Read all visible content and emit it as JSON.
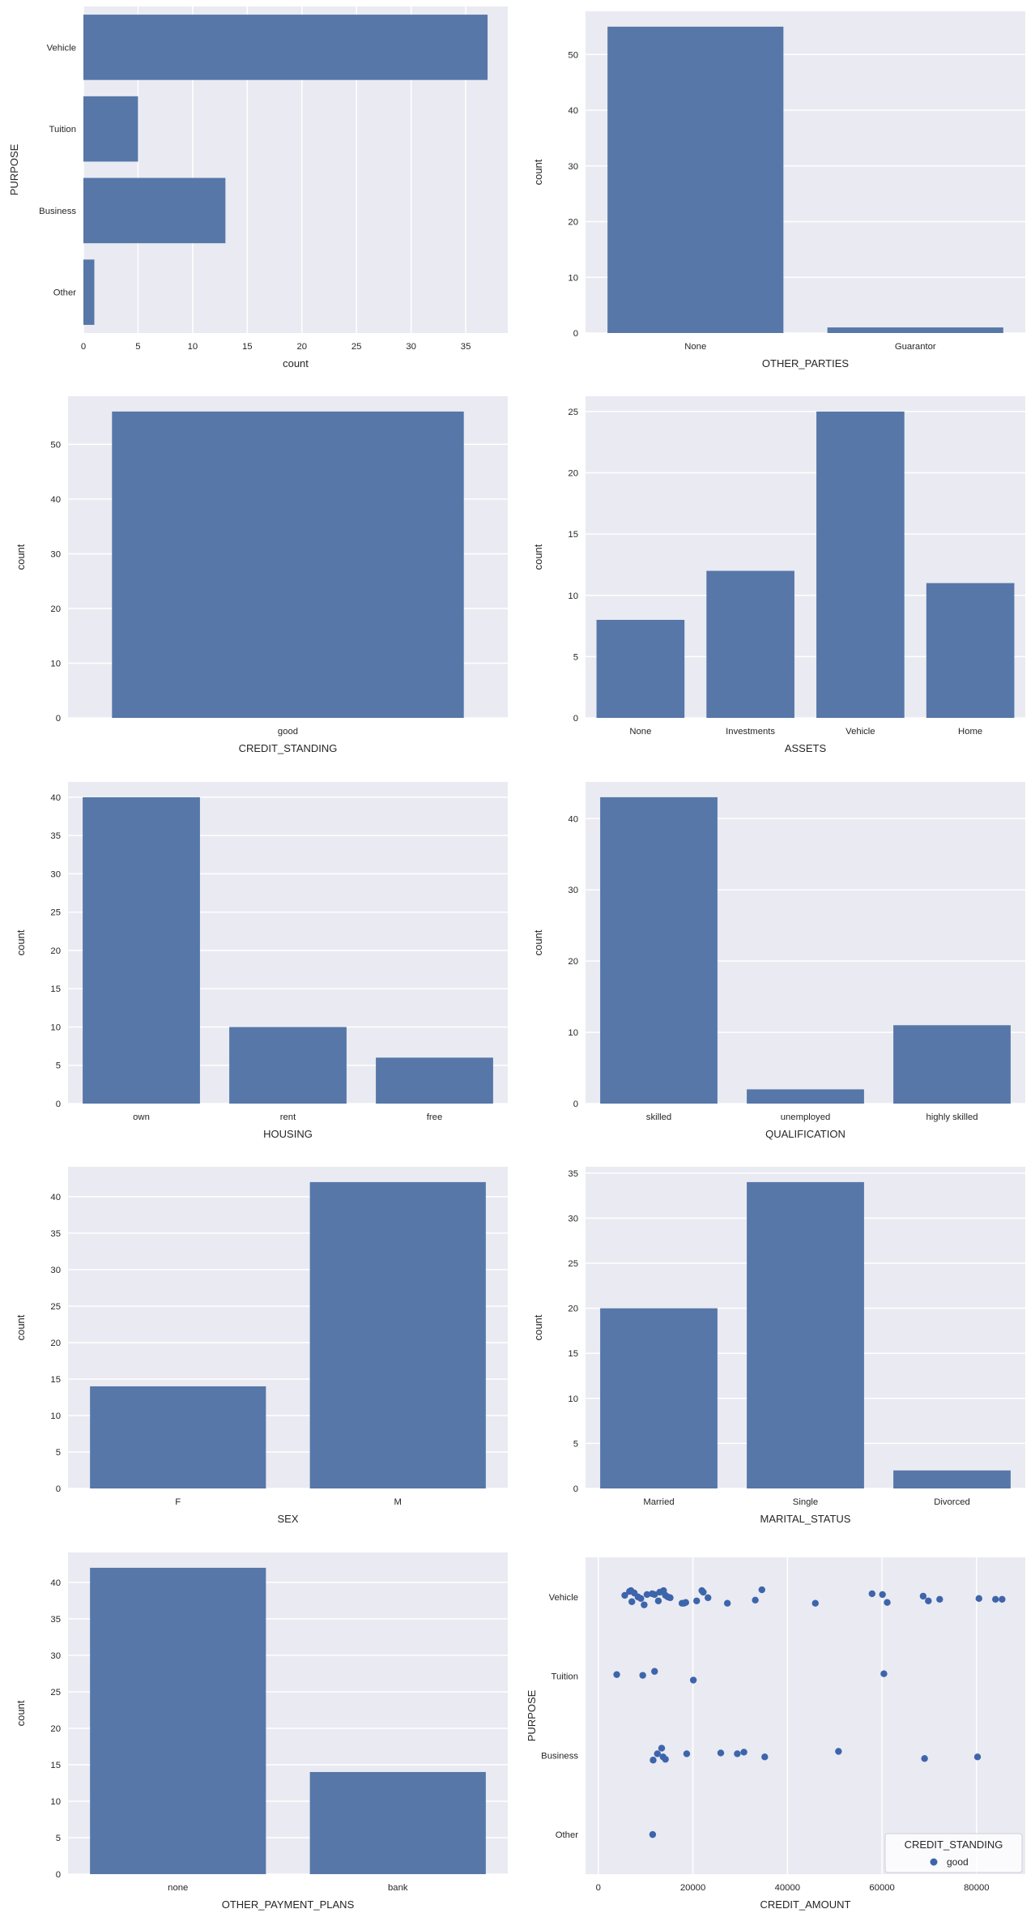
{
  "figure": {
    "background": "#ffffff",
    "axes_background": "#eaeaf2",
    "grid_color": "#ffffff",
    "bar_color": "#5677a8",
    "point_color": "#3d65ab",
    "text_color": "#262626",
    "legend_border": "#cfcfd8",
    "legend_background": "rgba(255,255,255,0.8)"
  },
  "chart_data": [
    {
      "type": "bar",
      "orientation": "horizontal",
      "title": "",
      "xlabel": "count",
      "ylabel": "PURPOSE",
      "categories": [
        "Vehicle",
        "Tuition",
        "Business",
        "Other"
      ],
      "values": [
        37,
        5,
        13,
        1
      ],
      "value_ticks": [
        0,
        5,
        10,
        15,
        20,
        25,
        30,
        35
      ],
      "value_max": 38.85,
      "grid": true
    },
    {
      "type": "bar",
      "orientation": "vertical",
      "title": "",
      "xlabel": "OTHER_PARTIES",
      "ylabel": "count",
      "categories": [
        "None",
        "Guarantor"
      ],
      "values": [
        55,
        1
      ],
      "value_ticks": [
        0,
        10,
        20,
        30,
        40,
        50
      ],
      "value_max": 57.75,
      "grid": true
    },
    {
      "type": "bar",
      "orientation": "vertical",
      "title": "",
      "xlabel": "CREDIT_STANDING",
      "ylabel": "count",
      "categories": [
        "good"
      ],
      "values": [
        56
      ],
      "value_ticks": [
        0,
        10,
        20,
        30,
        40,
        50
      ],
      "value_max": 58.8,
      "grid": true
    },
    {
      "type": "bar",
      "orientation": "vertical",
      "title": "",
      "xlabel": "ASSETS",
      "ylabel": "count",
      "categories": [
        "None",
        "Investments",
        "Vehicle",
        "Home"
      ],
      "values": [
        8,
        12,
        25,
        11
      ],
      "value_ticks": [
        0,
        5,
        10,
        15,
        20,
        25
      ],
      "value_max": 26.25,
      "grid": true
    },
    {
      "type": "bar",
      "orientation": "vertical",
      "title": "",
      "xlabel": "HOUSING",
      "ylabel": "count",
      "categories": [
        "own",
        "rent",
        "free"
      ],
      "values": [
        40,
        10,
        6
      ],
      "value_ticks": [
        0,
        5,
        10,
        15,
        20,
        25,
        30,
        35,
        40
      ],
      "value_max": 42,
      "grid": true
    },
    {
      "type": "bar",
      "orientation": "vertical",
      "title": "",
      "xlabel": "QUALIFICATION",
      "ylabel": "count",
      "categories": [
        "skilled",
        "unemployed",
        "highly skilled"
      ],
      "values": [
        43,
        2,
        11
      ],
      "value_ticks": [
        0,
        10,
        20,
        30,
        40
      ],
      "value_max": 45.15,
      "grid": true
    },
    {
      "type": "bar",
      "orientation": "vertical",
      "title": "",
      "xlabel": "SEX",
      "ylabel": "count",
      "categories": [
        "F",
        "M"
      ],
      "values": [
        14,
        42
      ],
      "value_ticks": [
        0,
        5,
        10,
        15,
        20,
        25,
        30,
        35,
        40
      ],
      "value_max": 44.1,
      "grid": true
    },
    {
      "type": "bar",
      "orientation": "vertical",
      "title": "",
      "xlabel": "MARITAL_STATUS",
      "ylabel": "count",
      "categories": [
        "Married",
        "Single",
        "Divorced"
      ],
      "values": [
        20,
        34,
        2
      ],
      "value_ticks": [
        0,
        5,
        10,
        15,
        20,
        25,
        30,
        35
      ],
      "value_max": 35.7,
      "grid": true
    },
    {
      "type": "bar",
      "orientation": "vertical",
      "title": "",
      "xlabel": "OTHER_PAYMENT_PLANS",
      "ylabel": "count",
      "categories": [
        "none",
        "bank"
      ],
      "values": [
        42,
        14
      ],
      "value_ticks": [
        0,
        5,
        10,
        15,
        20,
        25,
        30,
        35,
        40
      ],
      "value_max": 44.1,
      "grid": true
    },
    {
      "type": "strip",
      "title": "",
      "xlabel": "CREDIT_AMOUNT",
      "ylabel": "PURPOSE",
      "categories": [
        "Vehicle",
        "Tuition",
        "Business",
        "Other"
      ],
      "x_ticks": [
        0,
        20000,
        40000,
        60000,
        80000
      ],
      "xlim": [
        -2700,
        90300
      ],
      "grid": true,
      "legend": {
        "title": "CREDIT_STANDING",
        "entries": [
          {
            "label": "good"
          }
        ]
      },
      "points": {
        "Vehicle": [
          [
            5600,
            -0.02
          ],
          [
            6600,
            -0.07
          ],
          [
            6900,
            -0.08
          ],
          [
            7100,
            0.06
          ],
          [
            7600,
            -0.05
          ],
          [
            8400,
            0.0
          ],
          [
            9000,
            0.02
          ],
          [
            9700,
            0.1
          ],
          [
            10300,
            -0.03
          ],
          [
            11400,
            -0.04
          ],
          [
            11900,
            -0.03
          ],
          [
            12700,
            0.05
          ],
          [
            13000,
            -0.06
          ],
          [
            13800,
            -0.08
          ],
          [
            14200,
            -0.02
          ],
          [
            14700,
            0.0
          ],
          [
            15200,
            0.01
          ],
          [
            17700,
            0.08
          ],
          [
            18100,
            0.08
          ],
          [
            18500,
            0.07
          ],
          [
            20800,
            0.05
          ],
          [
            21900,
            -0.08
          ],
          [
            22200,
            -0.06
          ],
          [
            23200,
            0.01
          ],
          [
            27300,
            0.08
          ],
          [
            33200,
            0.04
          ],
          [
            34600,
            -0.09
          ],
          [
            45900,
            0.08
          ],
          [
            57900,
            -0.04
          ],
          [
            60100,
            -0.03
          ],
          [
            61100,
            0.07
          ],
          [
            68700,
            -0.01
          ],
          [
            69800,
            0.05
          ],
          [
            72200,
            0.03
          ],
          [
            80500,
            0.02
          ],
          [
            84000,
            0.03
          ],
          [
            85400,
            0.03
          ]
        ],
        "Tuition": [
          [
            3900,
            -0.02
          ],
          [
            9400,
            -0.01
          ],
          [
            11900,
            -0.06
          ],
          [
            20100,
            0.05
          ],
          [
            60400,
            -0.03
          ]
        ],
        "Business": [
          [
            11600,
            0.06
          ],
          [
            12500,
            -0.02
          ],
          [
            13400,
            -0.09
          ],
          [
            13700,
            0.02
          ],
          [
            14200,
            0.05
          ],
          [
            18700,
            -0.02
          ],
          [
            25900,
            -0.03
          ],
          [
            29400,
            -0.02
          ],
          [
            30800,
            -0.04
          ],
          [
            35200,
            0.02
          ],
          [
            50800,
            -0.05
          ],
          [
            69000,
            0.04
          ],
          [
            80200,
            0.02
          ]
        ],
        "Other": [
          [
            11500,
            0.0
          ]
        ]
      }
    }
  ]
}
